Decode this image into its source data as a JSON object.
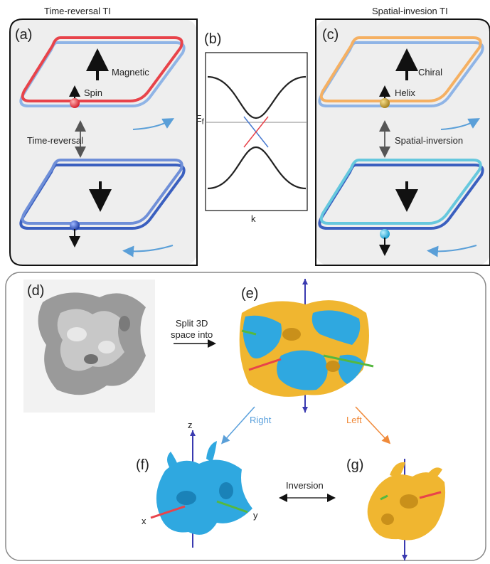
{
  "headers": {
    "left": "Time-reversal TI",
    "right": "Spatial-invesion TI"
  },
  "panel_labels": {
    "a": "(a)",
    "b": "(b)",
    "c": "(c)",
    "d": "(d)",
    "e": "(e)",
    "f": "(f)",
    "g": "(g)"
  },
  "panel_a": {
    "magnetic": "Magnetic",
    "spin": "Spin",
    "time_reversal": "Time-reversal"
  },
  "panel_b": {
    "fermi_label": "E",
    "fermi_sub": "f",
    "k_label": "k"
  },
  "panel_c": {
    "chiral": "Chiral",
    "helix": "Helix",
    "spatial_inversion": "Spatial-inversion"
  },
  "lower": {
    "split_line1": "Split 3D",
    "split_line2": "space into",
    "right": "Right",
    "left": "Left",
    "inversion": "Inversion",
    "axis_x": "x",
    "axis_y": "y",
    "axis_z": "z"
  },
  "colors": {
    "red_loop": "#e8434a",
    "light_blue_loop": "#8fb4e6",
    "dark_blue_loop": "#3a5fbf",
    "orange_loop": "#f5b062",
    "cyan_loop": "#66c8de",
    "blue_solid": "#2fa8e0",
    "gold_solid": "#f0b630",
    "right_arrow": "#5aa0dc",
    "left_arrow": "#f08a3a"
  }
}
